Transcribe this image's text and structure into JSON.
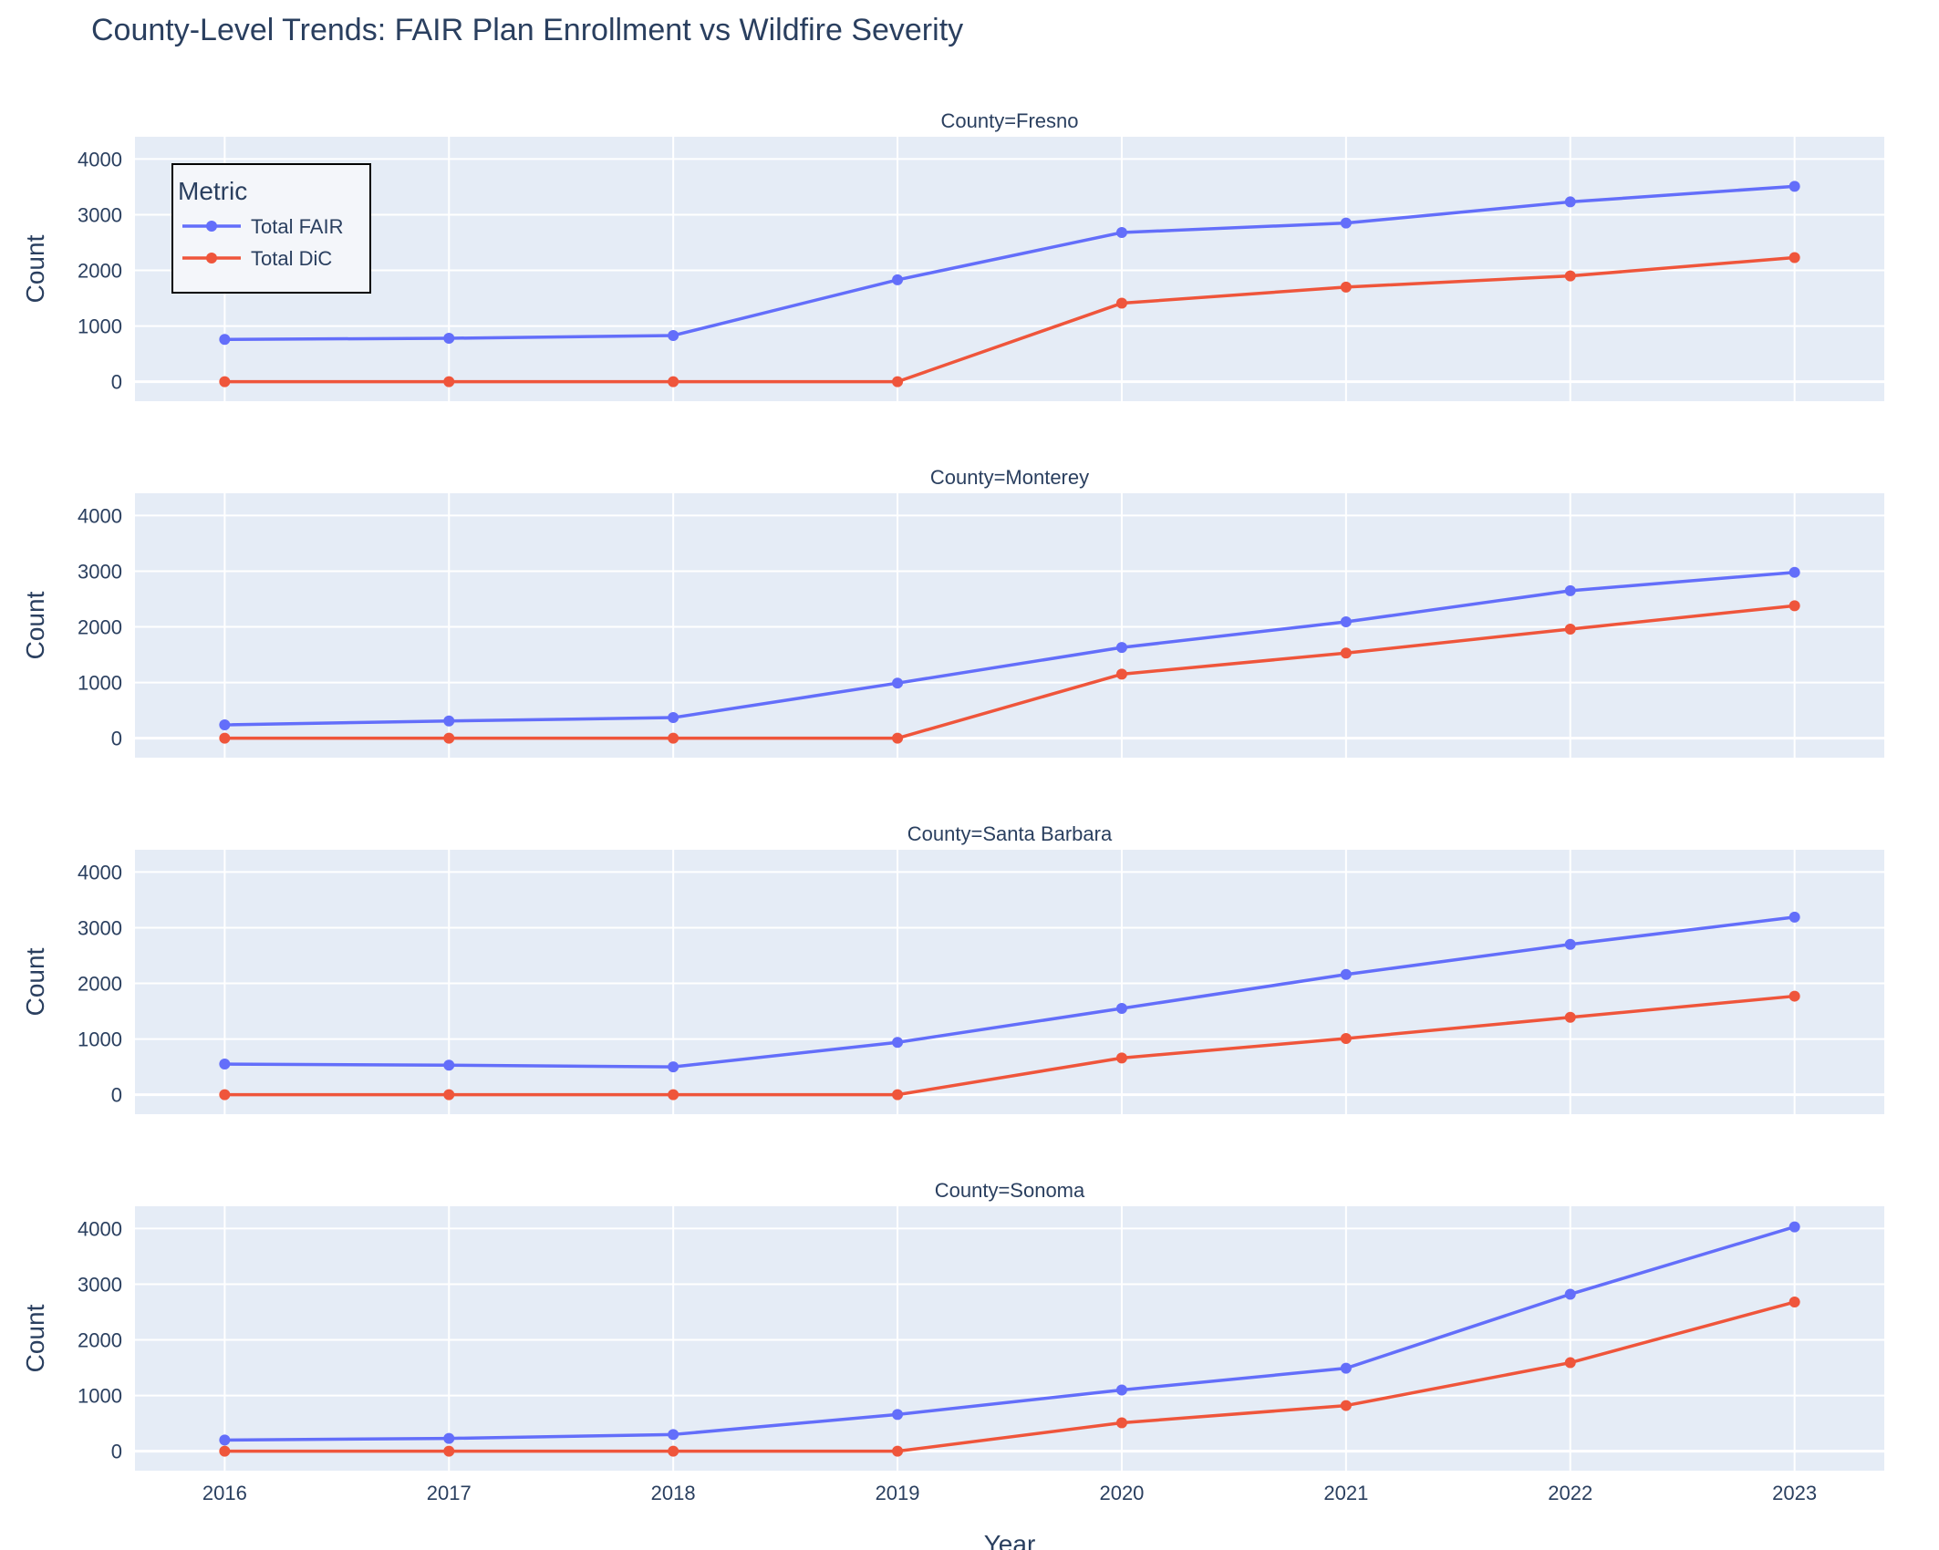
{
  "chart_data": {
    "type": "line",
    "title": "County-Level Trends: FAIR Plan Enrollment vs Wildfire Severity",
    "xlabel": "Year",
    "ylabel": "Count",
    "x": [
      2016,
      2017,
      2018,
      2019,
      2020,
      2021,
      2022,
      2023
    ],
    "xlim": [
      2015.6,
      2023.4
    ],
    "ylim": [
      -350,
      4400
    ],
    "yticks": [
      0,
      1000,
      2000,
      3000,
      4000
    ],
    "grid": true,
    "legend": {
      "title": "Metric",
      "placement": "top-left",
      "entries": [
        "Total FAIR",
        "Total DiC"
      ]
    },
    "colors": {
      "Total FAIR": "#636efa",
      "Total DiC": "#ef553b"
    },
    "panels": [
      {
        "title": "County=Fresno",
        "series": [
          {
            "name": "Total FAIR",
            "values": [
              760,
              780,
              830,
              1830,
              2680,
              2850,
              3230,
              3510
            ]
          },
          {
            "name": "Total DiC",
            "values": [
              0,
              0,
              0,
              0,
              1410,
              1700,
              1900,
              2230
            ]
          }
        ]
      },
      {
        "title": "County=Monterey",
        "series": [
          {
            "name": "Total FAIR",
            "values": [
              240,
              310,
              370,
              990,
              1630,
              2090,
              2650,
              2980
            ]
          },
          {
            "name": "Total DiC",
            "values": [
              0,
              0,
              0,
              0,
              1150,
              1530,
              1960,
              2380
            ]
          }
        ]
      },
      {
        "title": "County=Santa Barbara",
        "series": [
          {
            "name": "Total FAIR",
            "values": [
              550,
              530,
              500,
              940,
              1550,
              2160,
              2700,
              3190
            ]
          },
          {
            "name": "Total DiC",
            "values": [
              0,
              0,
              0,
              0,
              660,
              1010,
              1390,
              1770
            ]
          }
        ]
      },
      {
        "title": "County=Sonoma",
        "series": [
          {
            "name": "Total FAIR",
            "values": [
              200,
              230,
              300,
              660,
              1100,
              1490,
              2820,
              4030
            ]
          },
          {
            "name": "Total DiC",
            "values": [
              0,
              0,
              0,
              0,
              510,
              820,
              1590,
              2680
            ]
          }
        ]
      }
    ]
  }
}
